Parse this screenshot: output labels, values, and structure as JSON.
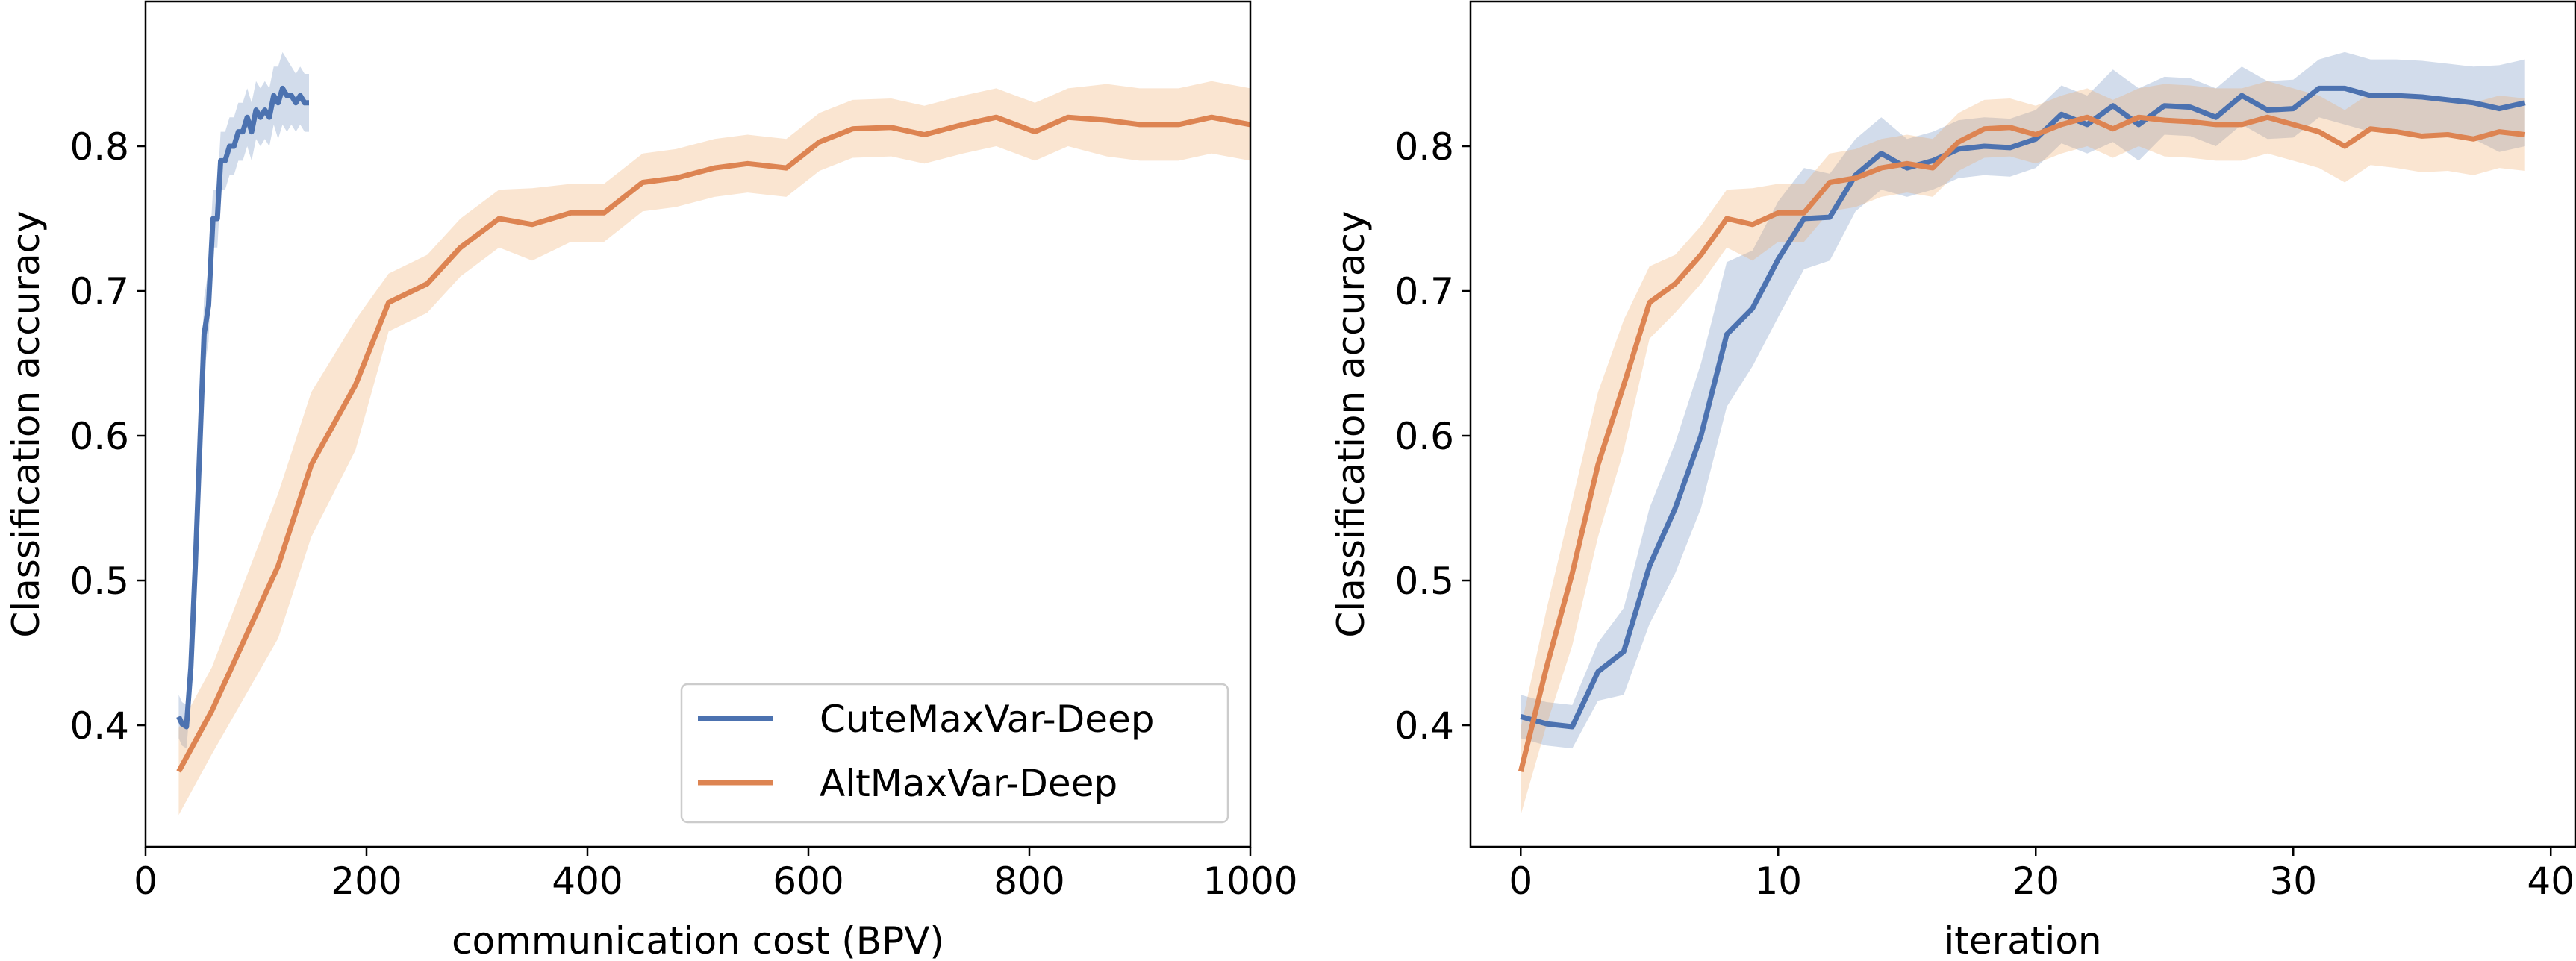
{
  "colors": {
    "cute": "#4c72b0",
    "alt": "#dd8452",
    "cute_band": "#4c72b0",
    "alt_band": "#f0a868"
  },
  "chart_data": [
    {
      "type": "line",
      "xlabel": "communication cost (BPV)",
      "ylabel": "Classification accuracy",
      "xlim": [
        0,
        1000
      ],
      "ylim": [
        0.316,
        0.9
      ],
      "xticks": [
        "0",
        "200",
        "400",
        "600",
        "800",
        "1000"
      ],
      "yticks": [
        "0.4",
        "0.5",
        "0.6",
        "0.7",
        "0.8"
      ],
      "grid": false,
      "legend": {
        "position": "lower-right",
        "entries": [
          "CuteMaxVar-Deep",
          "AltMaxVar-Deep"
        ]
      },
      "series": [
        {
          "name": "CuteMaxVar-Deep",
          "x": [
            30,
            33,
            37,
            41,
            45,
            49,
            53,
            57,
            61,
            65,
            68,
            72,
            76,
            80,
            84,
            88,
            92,
            96,
            100,
            104,
            108,
            112,
            116,
            120,
            124,
            128,
            132,
            136,
            140,
            144,
            148
          ],
          "y": [
            0.406,
            0.401,
            0.399,
            0.44,
            0.51,
            0.59,
            0.67,
            0.69,
            0.75,
            0.75,
            0.79,
            0.79,
            0.8,
            0.8,
            0.81,
            0.81,
            0.82,
            0.81,
            0.825,
            0.82,
            0.825,
            0.82,
            0.835,
            0.83,
            0.84,
            0.835,
            0.835,
            0.83,
            0.835,
            0.83,
            0.83
          ],
          "band": [
            0.015,
            0.015,
            0.015,
            0.02,
            0.025,
            0.025,
            0.025,
            0.025,
            0.02,
            0.02,
            0.02,
            0.02,
            0.02,
            0.02,
            0.02,
            0.02,
            0.02,
            0.02,
            0.02,
            0.02,
            0.02,
            0.02,
            0.02,
            0.025,
            0.025,
            0.025,
            0.02,
            0.02,
            0.02,
            0.02,
            0.02
          ]
        },
        {
          "name": "AltMaxVar-Deep",
          "x": [
            30,
            60,
            90,
            120,
            150,
            190,
            220,
            255,
            285,
            320,
            350,
            385,
            415,
            450,
            480,
            515,
            545,
            580,
            610,
            640,
            675,
            705,
            740,
            770,
            805,
            835,
            870,
            900,
            935,
            965,
            1000
          ],
          "y": [
            0.368,
            0.41,
            0.46,
            0.51,
            0.58,
            0.635,
            0.692,
            0.705,
            0.73,
            0.75,
            0.746,
            0.754,
            0.754,
            0.775,
            0.778,
            0.785,
            0.788,
            0.785,
            0.803,
            0.812,
            0.813,
            0.808,
            0.815,
            0.82,
            0.81,
            0.82,
            0.818,
            0.815,
            0.815,
            0.82,
            0.815
          ],
          "band": [
            0.03,
            0.03,
            0.04,
            0.05,
            0.05,
            0.045,
            0.02,
            0.02,
            0.02,
            0.02,
            0.025,
            0.02,
            0.02,
            0.02,
            0.02,
            0.02,
            0.02,
            0.02,
            0.02,
            0.02,
            0.02,
            0.02,
            0.02,
            0.02,
            0.02,
            0.02,
            0.025,
            0.025,
            0.025,
            0.025,
            0.025
          ]
        }
      ]
    },
    {
      "type": "line",
      "xlabel": "iteration",
      "ylabel": "Classification accuracy",
      "xlim": [
        -1.95,
        40.95
      ],
      "ylim": [
        0.316,
        0.9
      ],
      "xticks": [
        "0",
        "10",
        "20",
        "30",
        "40"
      ],
      "yticks": [
        "0.4",
        "0.5",
        "0.6",
        "0.7",
        "0.8"
      ],
      "grid": false,
      "series": [
        {
          "name": "CuteMaxVar-Deep",
          "x": [
            0,
            1,
            2,
            3,
            4,
            5,
            6,
            7,
            8,
            9,
            10,
            11,
            12,
            13,
            14,
            15,
            16,
            17,
            18,
            19,
            20,
            21,
            22,
            23,
            24,
            25,
            26,
            27,
            28,
            29,
            30,
            31,
            32,
            33,
            34,
            35,
            36,
            37,
            38,
            39
          ],
          "y": [
            0.406,
            0.401,
            0.399,
            0.437,
            0.451,
            0.51,
            0.55,
            0.6,
            0.67,
            0.688,
            0.722,
            0.75,
            0.751,
            0.78,
            0.795,
            0.785,
            0.79,
            0.798,
            0.8,
            0.799,
            0.805,
            0.822,
            0.815,
            0.828,
            0.815,
            0.828,
            0.827,
            0.82,
            0.835,
            0.825,
            0.826,
            0.84,
            0.84,
            0.835,
            0.835,
            0.834,
            0.832,
            0.83,
            0.826,
            0.83
          ],
          "band": [
            0.015,
            0.015,
            0.015,
            0.02,
            0.03,
            0.04,
            0.045,
            0.05,
            0.05,
            0.04,
            0.04,
            0.035,
            0.03,
            0.025,
            0.025,
            0.02,
            0.02,
            0.02,
            0.02,
            0.02,
            0.02,
            0.02,
            0.02,
            0.025,
            0.025,
            0.02,
            0.02,
            0.02,
            0.02,
            0.02,
            0.02,
            0.02,
            0.025,
            0.025,
            0.025,
            0.025,
            0.025,
            0.025,
            0.03,
            0.03
          ]
        },
        {
          "name": "AltMaxVar-Deep",
          "x": [
            0,
            1,
            2,
            3,
            4,
            5,
            6,
            7,
            8,
            9,
            10,
            11,
            12,
            13,
            14,
            15,
            16,
            17,
            18,
            19,
            20,
            21,
            22,
            23,
            24,
            25,
            26,
            27,
            28,
            29,
            30,
            31,
            32,
            33,
            34,
            35,
            36,
            37,
            38,
            39
          ],
          "y": [
            0.368,
            0.44,
            0.505,
            0.58,
            0.635,
            0.692,
            0.705,
            0.725,
            0.75,
            0.746,
            0.754,
            0.754,
            0.775,
            0.778,
            0.785,
            0.788,
            0.785,
            0.803,
            0.812,
            0.813,
            0.808,
            0.815,
            0.82,
            0.812,
            0.82,
            0.818,
            0.817,
            0.815,
            0.815,
            0.82,
            0.815,
            0.81,
            0.8,
            0.812,
            0.81,
            0.807,
            0.808,
            0.805,
            0.81,
            0.808
          ],
          "band": [
            0.03,
            0.04,
            0.05,
            0.05,
            0.045,
            0.025,
            0.02,
            0.02,
            0.02,
            0.025,
            0.02,
            0.02,
            0.02,
            0.02,
            0.02,
            0.02,
            0.02,
            0.02,
            0.02,
            0.02,
            0.02,
            0.02,
            0.02,
            0.02,
            0.02,
            0.025,
            0.025,
            0.025,
            0.025,
            0.025,
            0.025,
            0.025,
            0.025,
            0.025,
            0.025,
            0.025,
            0.025,
            0.025,
            0.025,
            0.025
          ]
        }
      ]
    }
  ]
}
